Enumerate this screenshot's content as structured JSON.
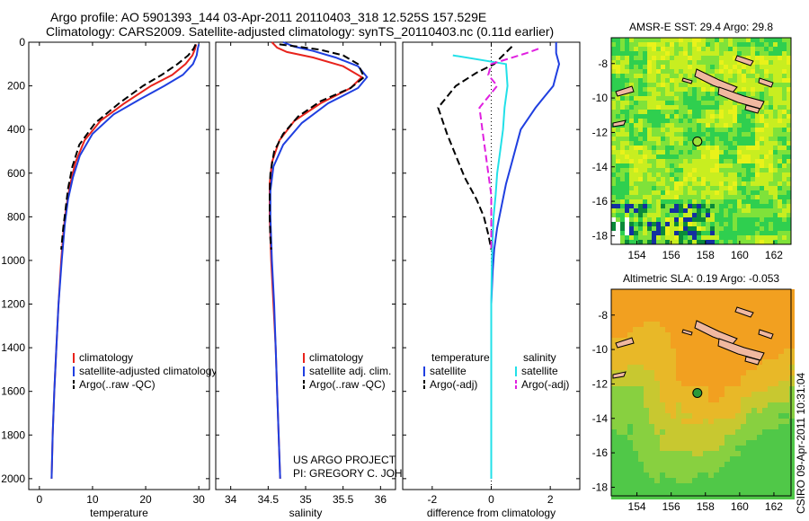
{
  "header": {
    "line1": "Argo profile: AO 5901393_144 03-Apr-2011 20110403_318 12.525S 157.529E",
    "line2": "Climatology: CARS2009. Satellite-adjusted climatology: synTS_20110403.nc (0.11d earlier)"
  },
  "side_stamp": "CSIRO 09-Apr-2011 10:31:04",
  "colors": {
    "climatology": "#e8231c",
    "satellite": "#1f3fe0",
    "argo": "#000000",
    "salinity_sat": "#22e0e8",
    "salinity_argo": "#e020e0"
  },
  "chart_data": [
    {
      "type": "line",
      "name": "temperature-profile",
      "xlabel": "temperature",
      "ylabel": "",
      "xlim": [
        -2,
        32
      ],
      "ylim": [
        0,
        2050
      ],
      "y_reversed": true,
      "xticks": [
        0,
        10,
        20,
        30
      ],
      "yticks": [
        0,
        200,
        400,
        600,
        800,
        1000,
        1200,
        1400,
        1600,
        1800,
        2000
      ],
      "series": [
        {
          "name": "climatology",
          "color": "#e8231c",
          "style": "solid",
          "points": [
            [
              29.5,
              10
            ],
            [
              29.3,
              30
            ],
            [
              28.8,
              60
            ],
            [
              27.5,
              100
            ],
            [
              25,
              150
            ],
            [
              21,
              200
            ],
            [
              16,
              280
            ],
            [
              11.5,
              360
            ],
            [
              8.5,
              450
            ],
            [
              6.8,
              550
            ],
            [
              5.8,
              650
            ],
            [
              5.1,
              750
            ],
            [
              4.6,
              850
            ],
            [
              4.1,
              1000
            ],
            [
              3.6,
              1200
            ],
            [
              3.2,
              1400
            ],
            [
              2.8,
              1600
            ],
            [
              2.5,
              1800
            ],
            [
              2.3,
              2000
            ]
          ]
        },
        {
          "name": "satellite-adjusted climatology",
          "color": "#1f3fe0",
          "style": "solid",
          "points": [
            [
              30,
              10
            ],
            [
              29.8,
              30
            ],
            [
              29.6,
              60
            ],
            [
              28.9,
              100
            ],
            [
              27,
              150
            ],
            [
              23.5,
              200
            ],
            [
              19,
              260
            ],
            [
              14,
              330
            ],
            [
              10,
              420
            ],
            [
              7.6,
              520
            ],
            [
              6.3,
              620
            ],
            [
              5.4,
              720
            ],
            [
              4.8,
              830
            ],
            [
              4.2,
              1000
            ],
            [
              3.6,
              1200
            ],
            [
              3.2,
              1400
            ],
            [
              2.8,
              1600
            ],
            [
              2.5,
              1800
            ],
            [
              2.3,
              2000
            ]
          ]
        },
        {
          "name": "Argo(..raw -QC)",
          "color": "#000000",
          "style": "dashed",
          "points": [
            [
              29.4,
              10
            ],
            [
              29,
              30
            ],
            [
              28,
              60
            ],
            [
              26,
              100
            ],
            [
              23,
              150
            ],
            [
              19.5,
              200
            ],
            [
              15,
              280
            ],
            [
              10.5,
              370
            ],
            [
              7.5,
              470
            ],
            [
              6.2,
              570
            ],
            [
              5.4,
              670
            ],
            [
              4.9,
              770
            ],
            [
              4.5,
              850
            ],
            [
              4.1,
              950
            ]
          ]
        }
      ],
      "legend": {
        "position": "bottom-center",
        "entries": [
          "climatology",
          "satellite-adjusted climatology",
          "Argo(..raw -QC)"
        ]
      }
    },
    {
      "type": "line",
      "name": "salinity-profile",
      "xlabel": "salinity",
      "ylabel": "",
      "xlim": [
        33.8,
        36.2
      ],
      "ylim": [
        0,
        2050
      ],
      "y_reversed": true,
      "xticks": [
        34,
        34.5,
        35,
        35.5,
        36
      ],
      "series": [
        {
          "name": "climatology",
          "color": "#e8231c",
          "style": "solid",
          "points": [
            [
              34.55,
              0
            ],
            [
              34.62,
              25
            ],
            [
              34.75,
              45
            ],
            [
              35.1,
              70
            ],
            [
              35.5,
              110
            ],
            [
              35.75,
              160
            ],
            [
              35.6,
              210
            ],
            [
              35.2,
              280
            ],
            [
              34.85,
              360
            ],
            [
              34.65,
              450
            ],
            [
              34.55,
              550
            ],
            [
              34.52,
              650
            ],
            [
              34.52,
              800
            ],
            [
              34.54,
              1000
            ],
            [
              34.57,
              1200
            ],
            [
              34.6,
              1400
            ],
            [
              34.62,
              1600
            ],
            [
              34.64,
              1800
            ],
            [
              34.66,
              2000
            ]
          ]
        },
        {
          "name": "satellite adj. clim.",
          "color": "#1f3fe0",
          "style": "solid",
          "points": [
            [
              34.7,
              0
            ],
            [
              34.85,
              20
            ],
            [
              35.1,
              40
            ],
            [
              35.4,
              70
            ],
            [
              35.7,
              110
            ],
            [
              35.82,
              160
            ],
            [
              35.7,
              210
            ],
            [
              35.3,
              280
            ],
            [
              34.95,
              370
            ],
            [
              34.7,
              470
            ],
            [
              34.57,
              570
            ],
            [
              34.53,
              680
            ],
            [
              34.53,
              800
            ],
            [
              34.55,
              1000
            ],
            [
              34.58,
              1200
            ],
            [
              34.6,
              1400
            ],
            [
              34.62,
              1600
            ],
            [
              34.64,
              1800
            ],
            [
              34.66,
              2000
            ]
          ]
        },
        {
          "name": "Argo(..raw -QC)",
          "color": "#000000",
          "style": "dashed",
          "points": [
            [
              34.65,
              10
            ],
            [
              34.9,
              20
            ],
            [
              35.2,
              35
            ],
            [
              35.5,
              60
            ],
            [
              35.7,
              100
            ],
            [
              35.78,
              160
            ],
            [
              35.6,
              210
            ],
            [
              35.2,
              270
            ],
            [
              34.9,
              340
            ],
            [
              34.7,
              420
            ],
            [
              34.58,
              500
            ],
            [
              34.53,
              600
            ],
            [
              34.52,
              700
            ],
            [
              34.52,
              800
            ],
            [
              34.53,
              900
            ],
            [
              34.54,
              950
            ]
          ]
        }
      ],
      "legend": {
        "position": "bottom-center",
        "entries": [
          "climatology",
          "satellite adj. clim.",
          "Argo(..raw -QC)"
        ]
      },
      "annotation": [
        "US ARGO PROJECT",
        "PI: GREGORY C. JOHNSON"
      ]
    },
    {
      "type": "line",
      "name": "difference-profile",
      "xlabel": "difference from climatology",
      "ylabel": "",
      "xlim": [
        -3,
        3
      ],
      "ylim": [
        0,
        2050
      ],
      "y_reversed": true,
      "xticks": [
        -2,
        0,
        2
      ],
      "series": [
        {
          "name": "temperature satellite",
          "color": "#1f3fe0",
          "style": "solid",
          "points": [
            [
              2.2,
              0
            ],
            [
              2.2,
              50
            ],
            [
              2.3,
              100
            ],
            [
              2.2,
              150
            ],
            [
              2.1,
              200
            ],
            [
              1.8,
              250
            ],
            [
              1.5,
              300
            ],
            [
              1.0,
              400
            ],
            [
              0.9,
              450
            ],
            [
              0.7,
              550
            ],
            [
              0.5,
              650
            ],
            [
              0.35,
              750
            ],
            [
              0.2,
              850
            ],
            [
              0.1,
              950
            ],
            [
              0.05,
              1050
            ],
            [
              0,
              1200
            ],
            [
              0,
              2000
            ]
          ]
        },
        {
          "name": "temperature Argo(-adj)",
          "color": "#000000",
          "style": "dashed",
          "points": [
            [
              0.7,
              20
            ],
            [
              0.4,
              60
            ],
            [
              0.1,
              100
            ],
            [
              -0.5,
              140
            ],
            [
              -1.2,
              200
            ],
            [
              -1.8,
              300
            ],
            [
              -1.5,
              420
            ],
            [
              -1.2,
              520
            ],
            [
              -0.9,
              620
            ],
            [
              -0.5,
              720
            ],
            [
              -0.25,
              800
            ],
            [
              -0.1,
              880
            ],
            [
              0,
              950
            ]
          ]
        },
        {
          "name": "salinity satellite",
          "color": "#22e0e8",
          "style": "solid",
          "points": [
            [
              -1.3,
              60
            ],
            [
              0.5,
              100
            ],
            [
              0.55,
              200
            ],
            [
              0.45,
              300
            ],
            [
              0.4,
              400
            ],
            [
              0.3,
              500
            ],
            [
              0.2,
              600
            ],
            [
              0.15,
              700
            ],
            [
              0.08,
              800
            ],
            [
              0.05,
              900
            ],
            [
              0.02,
              1000
            ],
            [
              0,
              1200
            ],
            [
              0,
              2000
            ]
          ]
        },
        {
          "name": "salinity Argo(-adj)",
          "color": "#e020e0",
          "style": "dashed",
          "points": [
            [
              1.6,
              30
            ],
            [
              1.2,
              50
            ],
            [
              0,
              100
            ],
            [
              -0.1,
              150
            ],
            [
              0.2,
              200
            ],
            [
              -0.4,
              300
            ],
            [
              -0.3,
              400
            ],
            [
              -0.2,
              500
            ],
            [
              -0.1,
              600
            ],
            [
              0,
              700
            ],
            [
              0,
              800
            ],
            [
              0,
              950
            ]
          ]
        }
      ],
      "legend": {
        "position": "bottom-center",
        "temperature_label": "temperature",
        "salinity_label": "salinity",
        "entries": [
          "satellite",
          "Argo(-adj)",
          "satellite",
          "Argo(-adj)"
        ]
      }
    },
    {
      "type": "heatmap",
      "name": "sst-map",
      "title": "AMSR-E SST: 29.4 Argo: 29.8",
      "xticks": [
        154,
        156,
        158,
        160,
        162
      ],
      "yticks": [
        -8,
        -10,
        -12,
        -14,
        -16,
        -18
      ],
      "xlim": [
        152.5,
        163
      ],
      "ylim": [
        -18.5,
        -6.5
      ],
      "float_position": [
        157.529,
        -12.525
      ]
    },
    {
      "type": "heatmap",
      "name": "sla-map",
      "title": "Altimetric SLA: 0.19 Argo: -0.053",
      "xticks": [
        154,
        156,
        158,
        160,
        162
      ],
      "yticks": [
        -8,
        -10,
        -12,
        -14,
        -16,
        -18
      ],
      "xlim": [
        152.5,
        163
      ],
      "ylim": [
        -18.5,
        -6.5
      ],
      "float_position": [
        157.529,
        -12.525
      ]
    }
  ]
}
